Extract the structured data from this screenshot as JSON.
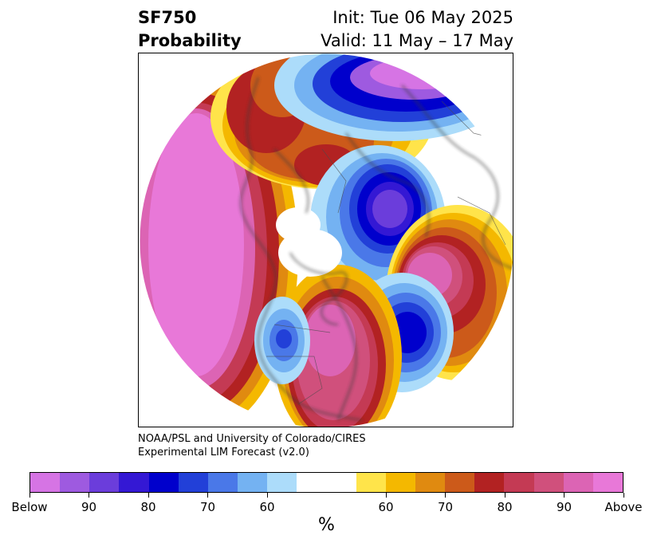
{
  "title": {
    "left_line1": "SF750",
    "left_line2": "Probability",
    "right_line1": "Init: Tue 06 May 2025",
    "right_line2": "Valid: 11 May – 17 May"
  },
  "credit": {
    "line1": "NOAA/PSL and University of Colorado/CIRES",
    "line2": "Experimental LIM Forecast (v2.0)"
  },
  "colorbar": {
    "unit": "%",
    "segments": [
      {
        "color": "#d674e4"
      },
      {
        "color": "#9e5ae0"
      },
      {
        "color": "#6b3ddb"
      },
      {
        "color": "#3418d4"
      },
      {
        "color": "#0000cc"
      },
      {
        "color": "#2240d8"
      },
      {
        "color": "#4a78e8"
      },
      {
        "color": "#74b2f2"
      },
      {
        "color": "#acdcfa"
      },
      {
        "color": "#ffffff",
        "wide": true
      },
      {
        "color": "#ffe44a"
      },
      {
        "color": "#f4b800"
      },
      {
        "color": "#e08a10"
      },
      {
        "color": "#cc5a1a"
      },
      {
        "color": "#b22222"
      },
      {
        "color": "#c43a54"
      },
      {
        "color": "#d0507c"
      },
      {
        "color": "#dc64b4"
      },
      {
        "color": "#e878d8"
      }
    ],
    "tick_labels": [
      "Below",
      "90",
      "80",
      "70",
      "60",
      "60",
      "70",
      "80",
      "90",
      "Above"
    ]
  },
  "legend_colors": {
    "strong_above": "#e878d8",
    "above": "#d0507c",
    "moderate_above": "#b22222",
    "weak_above": "#f4b800",
    "neutral": "#ffffff",
    "weak_below": "#acdcfa",
    "moderate_below": "#4a78e8",
    "below": "#0000cc",
    "strong_below": "#6b3ddb"
  }
}
